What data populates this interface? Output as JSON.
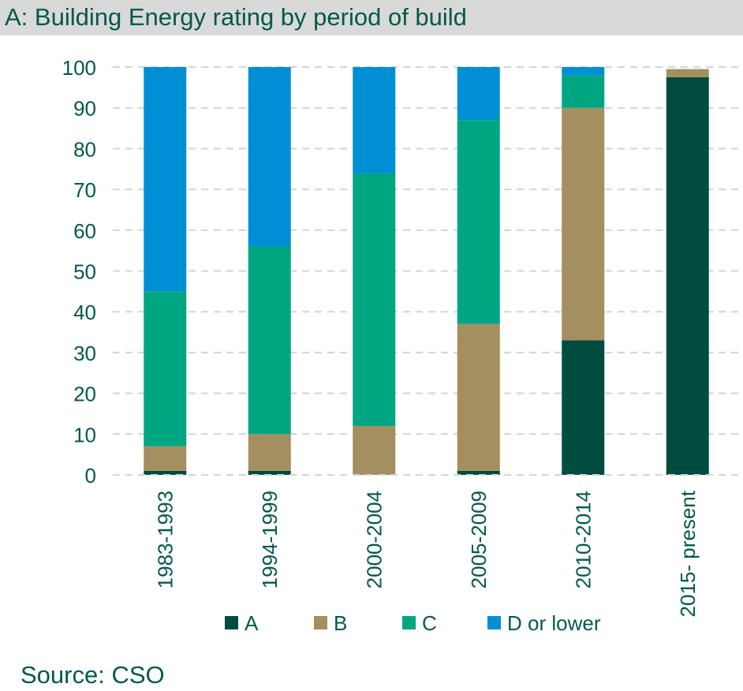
{
  "header": {
    "title": "A: Building Energy rating by period of build"
  },
  "footer": {
    "source": "Source: CSO"
  },
  "chart_data": {
    "type": "bar",
    "stacked": true,
    "title": "A: Building Energy rating by period of build",
    "xlabel": "",
    "ylabel": "",
    "ylim": [
      0,
      100
    ],
    "yticks": [
      0,
      10,
      20,
      30,
      40,
      50,
      60,
      70,
      80,
      90,
      100
    ],
    "grid": "horizontal dashed",
    "legend_position": "bottom",
    "categories": [
      "1983-1993",
      "1994-1999",
      "2000-2004",
      "2005-2009",
      "2010-2014",
      "2015- present"
    ],
    "series": [
      {
        "name": "A",
        "color": "#004d40",
        "values": [
          1,
          1,
          0,
          1,
          33,
          97.5
        ]
      },
      {
        "name": "B",
        "color": "#a38f5f",
        "values": [
          6,
          9,
          12,
          36,
          57,
          2
        ]
      },
      {
        "name": "C",
        "color": "#00a682",
        "values": [
          38,
          46,
          62,
          50,
          8,
          0
        ]
      },
      {
        "name": "D or lower",
        "color": "#008fd5",
        "values": [
          55,
          44,
          26,
          13,
          2,
          0
        ]
      }
    ]
  }
}
